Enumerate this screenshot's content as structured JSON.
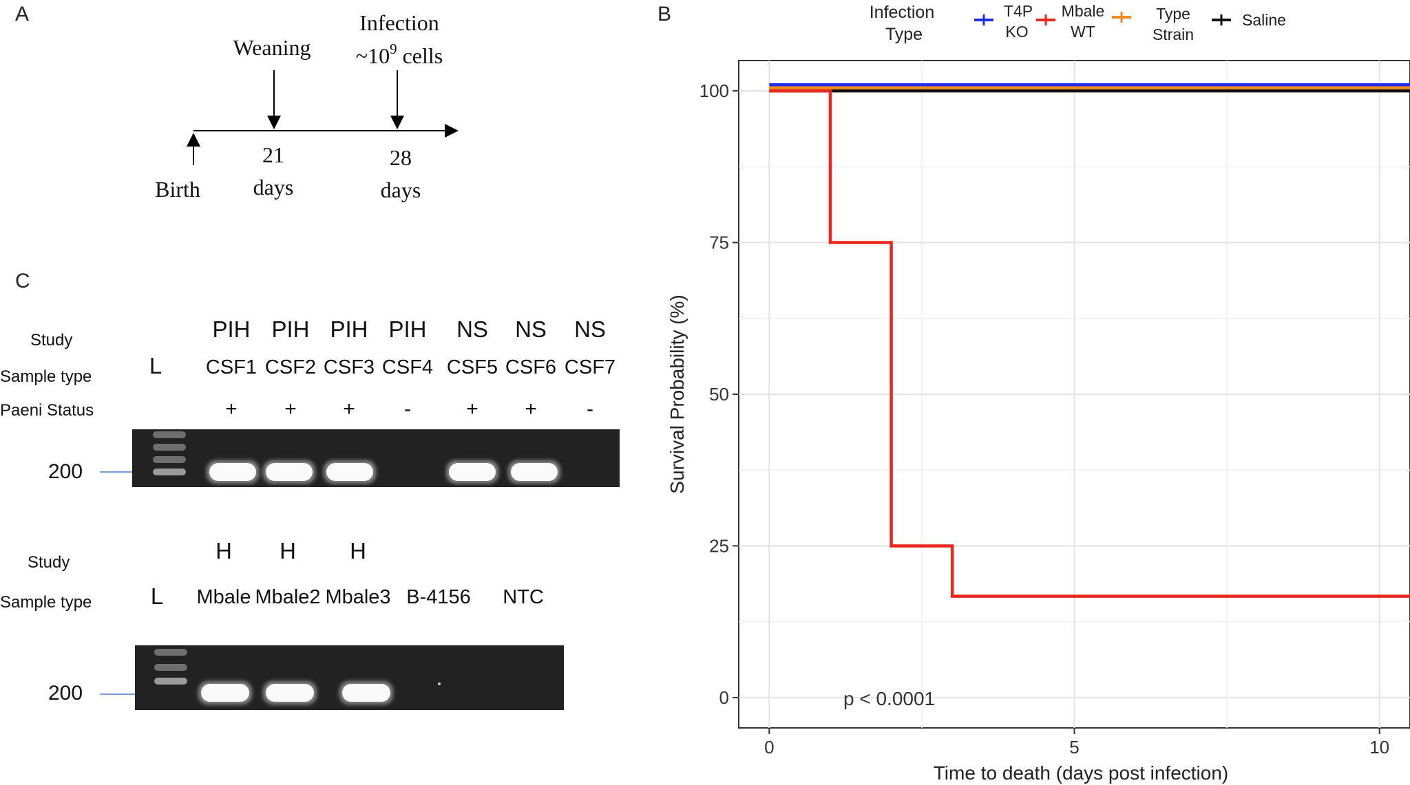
{
  "panel_a": {
    "label": "A",
    "events": {
      "weaning": "Weaning",
      "infection_line1": "Infection",
      "infection_line2_prefix": "~10",
      "infection_line2_exp": "9",
      "infection_line2_suffix": " cells"
    },
    "timeline": {
      "birth": "Birth",
      "day21_num": "21",
      "day21_unit": "days",
      "day28_num": "28",
      "day28_unit": "days"
    }
  },
  "panel_b": {
    "label": "B",
    "legend": {
      "title_line1": "Infection",
      "title_line2": "Type",
      "items": [
        {
          "line1": "T4P",
          "line2": "KO",
          "color": "#1f2ee8"
        },
        {
          "line1": "Mbale",
          "line2": "WT",
          "color": "#e8281f"
        },
        {
          "line1": "Type",
          "line2": "Strain",
          "color": "#f08a1a"
        },
        {
          "line1": "Saline",
          "line2": "",
          "color": "#111111"
        }
      ]
    },
    "pvalue": "p < 0.0001"
  },
  "chart_data": {
    "type": "line",
    "title": "",
    "xlabel": "Time to death (days post infection)",
    "ylabel": "Survival Probability (%)",
    "xlim": [
      -0.5,
      10.5
    ],
    "ylim": [
      -5,
      105
    ],
    "x_ticks": [
      0,
      5,
      10
    ],
    "y_ticks": [
      0,
      25,
      50,
      75,
      100
    ],
    "grid": true,
    "legend_position": "top",
    "series": [
      {
        "name": "T4P KO",
        "step": true,
        "x": [
          0,
          10.5
        ],
        "y": [
          101,
          101
        ],
        "color": "#1f2ee8"
      },
      {
        "name": "Type Strain",
        "step": true,
        "x": [
          0,
          10.5
        ],
        "y": [
          100.5,
          100.5
        ],
        "color": "#f08a1a"
      },
      {
        "name": "Saline",
        "step": true,
        "x": [
          0,
          10.5
        ],
        "y": [
          100,
          100
        ],
        "color": "#111111"
      },
      {
        "name": "Mbale WT",
        "step": true,
        "x": [
          0,
          1,
          2,
          3,
          10.5
        ],
        "y": [
          100,
          75,
          25,
          16.7,
          16.7
        ],
        "color": "#e8281f"
      }
    ]
  },
  "panel_c": {
    "label": "C",
    "gel1": {
      "row_labels": {
        "study": "Study",
        "sample_type": "Sample type",
        "status": "Paeni Status"
      },
      "ladder_label": "L",
      "size_marker": "200",
      "lanes": [
        {
          "study": "PIH",
          "sample": "CSF1",
          "status": "+",
          "band": true
        },
        {
          "study": "PIH",
          "sample": "CSF2",
          "status": "+",
          "band": true
        },
        {
          "study": "PIH",
          "sample": "CSF3",
          "status": "+",
          "band": true
        },
        {
          "study": "PIH",
          "sample": "CSF4",
          "status": "-",
          "band": false
        },
        {
          "study": "NS",
          "sample": "CSF5",
          "status": "+",
          "band": true
        },
        {
          "study": "NS",
          "sample": "CSF6",
          "status": "+",
          "band": true
        },
        {
          "study": "NS",
          "sample": "CSF7",
          "status": "-",
          "band": false
        }
      ]
    },
    "gel2": {
      "row_labels": {
        "study": "Study",
        "sample_type": "Sample type"
      },
      "ladder_label": "L",
      "size_marker": "200",
      "lanes": [
        {
          "study": "H",
          "sample": "Mbale",
          "band": true
        },
        {
          "study": "H",
          "sample": "Mbale2",
          "band": true
        },
        {
          "study": "H",
          "sample": "Mbale3",
          "band": true
        },
        {
          "study": "",
          "sample": "B-4156",
          "band": false
        },
        {
          "study": "",
          "sample": "NTC",
          "band": false
        }
      ]
    }
  }
}
